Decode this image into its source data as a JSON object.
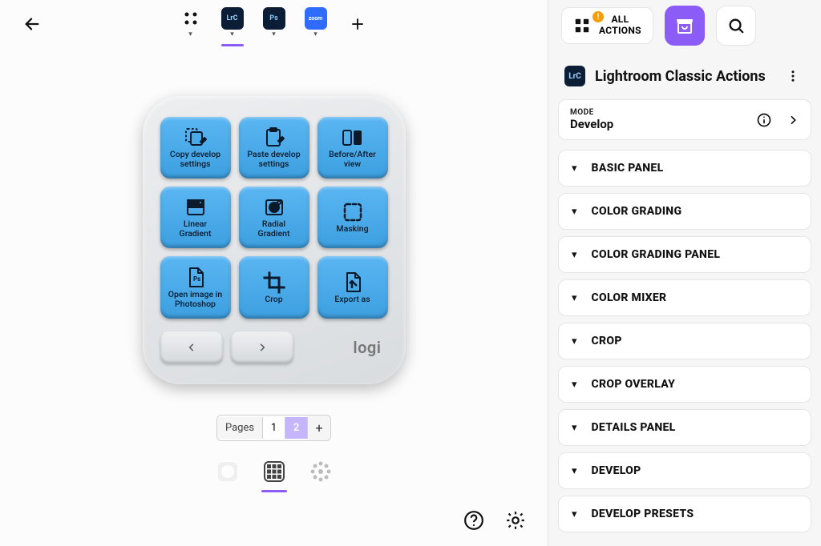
{
  "topbar": {
    "apps": [
      {
        "id": "grid",
        "style": "icon"
      },
      {
        "id": "lrc",
        "label": "LrC",
        "bg": "#0b1e36",
        "fg": "#9cd3ff",
        "active": true
      },
      {
        "id": "ps",
        "label": "Ps",
        "bg": "#0b1e36",
        "fg": "#7fc6ff"
      },
      {
        "id": "zoom",
        "label": "zoom",
        "bg": "#2f6bff",
        "fg": "#ffffff"
      }
    ]
  },
  "device": {
    "brand": "logi",
    "key_color": "#4aaae8",
    "keys": [
      {
        "label": "Copy develop\nsettings",
        "icon": "copy-edit"
      },
      {
        "label": "Paste develop\nsettings",
        "icon": "paste-edit"
      },
      {
        "label": "Before/After\nview",
        "icon": "before-after"
      },
      {
        "label": "Linear\nGradient",
        "icon": "linear-gradient"
      },
      {
        "label": "Radial\nGradient",
        "icon": "radial-gradient"
      },
      {
        "label": "Masking",
        "icon": "masking"
      },
      {
        "label": "Open image in\nPhotoshop",
        "icon": "open-ps"
      },
      {
        "label": "Crop",
        "icon": "crop"
      },
      {
        "label": "Export as",
        "icon": "export"
      }
    ]
  },
  "pager": {
    "label": "Pages",
    "pages": [
      "1",
      "2"
    ],
    "active": "2"
  },
  "sidebar": {
    "all_actions": "ALL\nACTIONS",
    "title": "Lightroom Classic Actions",
    "mode_label": "MODE",
    "mode_value": "Develop",
    "sections": [
      "BASIC PANEL",
      "COLOR GRADING",
      "COLOR GRADING PANEL",
      "COLOR MIXER",
      "CROP",
      "CROP OVERLAY",
      "DETAILS PANEL",
      "DEVELOP",
      "DEVELOP PRESETS"
    ]
  },
  "colors": {
    "accent": "#8b5cf6"
  }
}
